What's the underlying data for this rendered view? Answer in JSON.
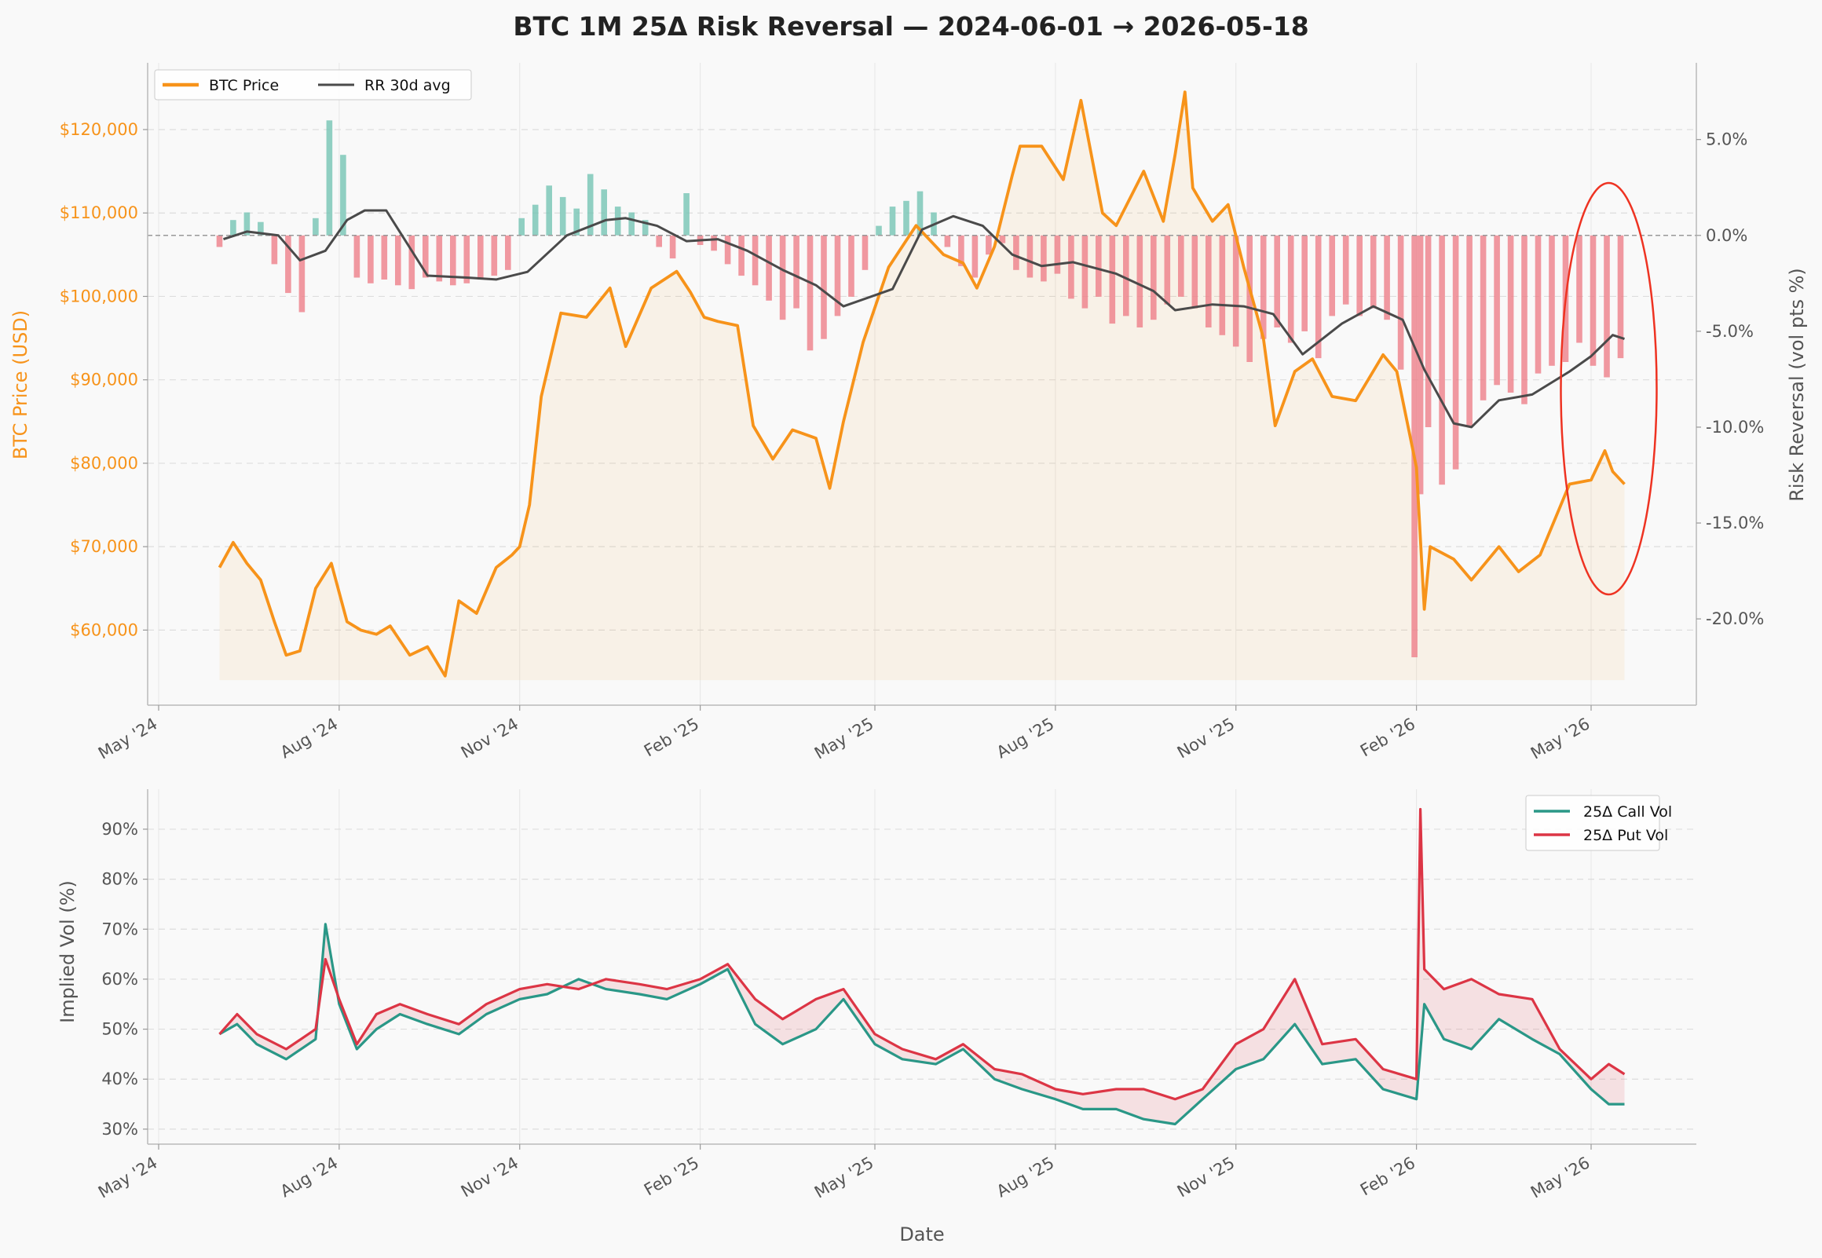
{
  "colors": {
    "price": "#f7931a",
    "rr_avg": "#4a4a4a",
    "rr_pos": "#76c4b4",
    "rr_neg": "#ee808a",
    "call": "#2a9787",
    "put": "#dc3545",
    "callout": "#ee3322",
    "grid": "#dddddd",
    "background": "#f9f9f9"
  },
  "chart_data": [
    {
      "type": "line",
      "title": "BTC 1M 25Δ Risk Reversal  —  2024-06-01 → 2026-05-18",
      "ylabel": "BTC Price (USD)",
      "y2label": "Risk Reversal (vol pts %)",
      "x_ticks": [
        "May '24",
        "Aug '24",
        "Nov '24",
        "Feb '25",
        "May '25",
        "Aug '25",
        "Nov '25",
        "Feb '26",
        "May '26"
      ],
      "ylim": [
        51000,
        128000
      ],
      "y_ticks": [
        "$60,000",
        "$70,000",
        "$80,000",
        "$90,000",
        "$100,000",
        "$110,000",
        "$120,000"
      ],
      "y2lim": [
        -24.5,
        9.0
      ],
      "y2_ticks": [
        "5.0%",
        "0.0%",
        "-5.0%",
        "-10.0%",
        "-15.0%",
        "-20.0%"
      ],
      "grid": true,
      "legend": {
        "placement": "top-left",
        "entries": [
          "BTC Price",
          "RR 30d avg"
        ]
      },
      "annotation": "red ellipse highlighting recent period (Apr–May 2026)",
      "price_series": {
        "name": "BTC Price",
        "x": [
          "2024-06-01",
          "2024-06-08",
          "2024-06-15",
          "2024-06-22",
          "2024-06-29",
          "2024-07-05",
          "2024-07-12",
          "2024-07-20",
          "2024-07-28",
          "2024-08-05",
          "2024-08-12",
          "2024-08-20",
          "2024-08-27",
          "2024-09-06",
          "2024-09-15",
          "2024-09-24",
          "2024-10-01",
          "2024-10-10",
          "2024-10-20",
          "2024-10-28",
          "2024-11-01",
          "2024-11-06",
          "2024-11-12",
          "2024-11-22",
          "2024-12-05",
          "2024-12-17",
          "2024-12-25",
          "2025-01-07",
          "2025-01-20",
          "2025-01-27",
          "2025-02-03",
          "2025-02-10",
          "2025-02-20",
          "2025-02-28",
          "2025-03-10",
          "2025-03-20",
          "2025-04-01",
          "2025-04-08",
          "2025-04-15",
          "2025-04-25",
          "2025-05-08",
          "2025-05-22",
          "2025-06-05",
          "2025-06-15",
          "2025-06-22",
          "2025-07-01",
          "2025-07-10",
          "2025-07-14",
          "2025-07-25",
          "2025-08-05",
          "2025-08-14",
          "2025-08-25",
          "2025-09-01",
          "2025-09-15",
          "2025-09-25",
          "2025-10-01",
          "2025-10-06",
          "2025-10-10",
          "2025-10-20",
          "2025-10-28",
          "2025-11-05",
          "2025-11-15",
          "2025-11-21",
          "2025-12-01",
          "2025-12-10",
          "2025-12-20",
          "2026-01-01",
          "2026-01-15",
          "2026-01-22",
          "2026-02-01",
          "2026-02-05",
          "2026-02-08",
          "2026-02-20",
          "2026-03-01",
          "2026-03-15",
          "2026-03-25",
          "2026-04-05",
          "2026-04-20",
          "2026-05-01",
          "2026-05-08",
          "2026-05-12",
          "2026-05-18"
        ],
        "values": [
          67500,
          70500,
          68000,
          66000,
          61000,
          57000,
          57500,
          65000,
          68000,
          61000,
          60000,
          59500,
          60500,
          57000,
          58000,
          54500,
          63500,
          62000,
          67500,
          69000,
          70000,
          75000,
          88000,
          98000,
          97500,
          101000,
          94000,
          101000,
          103000,
          100500,
          97500,
          97000,
          96500,
          84500,
          80500,
          84000,
          83000,
          77000,
          85000,
          94500,
          103500,
          108500,
          105000,
          104000,
          101000,
          106000,
          114500,
          118000,
          118000,
          114000,
          123500,
          110000,
          108500,
          115000,
          109000,
          117000,
          124500,
          113000,
          109000,
          111000,
          103500,
          95000,
          84500,
          91000,
          92500,
          88000,
          87500,
          93000,
          91000,
          79500,
          62500,
          70000,
          68500,
          66000,
          70000,
          67000,
          69000,
          77500,
          78000,
          81500,
          79000,
          77500
        ]
      },
      "rr_30d_avg": {
        "name": "RR 30d avg",
        "x": [
          "2024-06-03",
          "2024-06-15",
          "2024-07-01",
          "2024-07-12",
          "2024-07-25",
          "2024-08-05",
          "2024-08-14",
          "2024-08-25",
          "2024-09-15",
          "2024-10-05",
          "2024-10-20",
          "2024-11-05",
          "2024-11-25",
          "2024-12-15",
          "2024-12-25",
          "2025-01-10",
          "2025-01-25",
          "2025-02-10",
          "2025-02-25",
          "2025-03-15",
          "2025-04-01",
          "2025-04-15",
          "2025-05-10",
          "2025-05-25",
          "2025-06-10",
          "2025-06-25",
          "2025-07-10",
          "2025-07-25",
          "2025-08-10",
          "2025-09-01",
          "2025-09-20",
          "2025-10-01",
          "2025-10-20",
          "2025-11-05",
          "2025-11-20",
          "2025-12-05",
          "2025-12-25",
          "2026-01-10",
          "2026-01-25",
          "2026-02-05",
          "2026-02-20",
          "2026-03-01",
          "2026-03-15",
          "2026-04-01",
          "2026-04-20",
          "2026-05-01",
          "2026-05-12",
          "2026-05-18"
        ],
        "values": [
          -0.2,
          0.2,
          0.0,
          -1.3,
          -0.8,
          0.8,
          1.3,
          1.3,
          -2.1,
          -2.2,
          -2.3,
          -1.9,
          0.0,
          0.8,
          0.9,
          0.5,
          -0.3,
          -0.2,
          -0.8,
          -1.8,
          -2.6,
          -3.7,
          -2.8,
          0.3,
          1.0,
          0.5,
          -1.0,
          -1.6,
          -1.4,
          -2.0,
          -2.9,
          -3.9,
          -3.6,
          -3.7,
          -4.1,
          -6.2,
          -4.6,
          -3.7,
          -4.4,
          -7.0,
          -9.8,
          -10.0,
          -8.6,
          -8.3,
          -7.1,
          -6.3,
          -5.2,
          -5.4
        ]
      },
      "rr_daily_bars": {
        "name": "Risk Reversal (daily)",
        "x": [
          "2024-06-01",
          "2024-06-08",
          "2024-06-15",
          "2024-06-22",
          "2024-06-29",
          "2024-07-06",
          "2024-07-13",
          "2024-07-20",
          "2024-07-27",
          "2024-08-03",
          "2024-08-10",
          "2024-08-17",
          "2024-08-24",
          "2024-08-31",
          "2024-09-07",
          "2024-09-14",
          "2024-09-21",
          "2024-09-28",
          "2024-10-05",
          "2024-10-12",
          "2024-10-19",
          "2024-10-26",
          "2024-11-02",
          "2024-11-09",
          "2024-11-16",
          "2024-11-23",
          "2024-11-30",
          "2024-12-07",
          "2024-12-14",
          "2024-12-21",
          "2024-12-28",
          "2025-01-04",
          "2025-01-11",
          "2025-01-18",
          "2025-01-25",
          "2025-02-01",
          "2025-02-08",
          "2025-02-15",
          "2025-02-22",
          "2025-03-01",
          "2025-03-08",
          "2025-03-15",
          "2025-03-22",
          "2025-03-29",
          "2025-04-05",
          "2025-04-12",
          "2025-04-19",
          "2025-04-26",
          "2025-05-03",
          "2025-05-10",
          "2025-05-17",
          "2025-05-24",
          "2025-05-31",
          "2025-06-07",
          "2025-06-14",
          "2025-06-21",
          "2025-06-28",
          "2025-07-05",
          "2025-07-12",
          "2025-07-19",
          "2025-07-26",
          "2025-08-02",
          "2025-08-09",
          "2025-08-16",
          "2025-08-23",
          "2025-08-30",
          "2025-09-06",
          "2025-09-13",
          "2025-09-20",
          "2025-09-27",
          "2025-10-04",
          "2025-10-11",
          "2025-10-18",
          "2025-10-25",
          "2025-11-01",
          "2025-11-08",
          "2025-11-15",
          "2025-11-22",
          "2025-11-29",
          "2025-12-06",
          "2025-12-13",
          "2025-12-20",
          "2025-12-27",
          "2026-01-03",
          "2026-01-10",
          "2026-01-17",
          "2026-01-24",
          "2026-01-31",
          "2026-02-03",
          "2026-02-07",
          "2026-02-14",
          "2026-02-21",
          "2026-02-28",
          "2026-03-07",
          "2026-03-14",
          "2026-03-21",
          "2026-03-28",
          "2026-04-04",
          "2026-04-11",
          "2026-04-18",
          "2026-04-25",
          "2026-05-02",
          "2026-05-09",
          "2026-05-16"
        ],
        "values": [
          -0.6,
          0.8,
          1.2,
          0.7,
          -1.5,
          -3.0,
          -4.0,
          0.9,
          6.0,
          4.2,
          -2.2,
          -2.5,
          -2.3,
          -2.6,
          -2.8,
          -2.2,
          -2.4,
          -2.6,
          -2.5,
          -2.3,
          -2.1,
          -1.8,
          0.9,
          1.6,
          2.6,
          2.0,
          1.4,
          3.2,
          2.4,
          1.5,
          1.2,
          0.8,
          -0.6,
          -1.2,
          2.2,
          -0.5,
          -0.8,
          -1.5,
          -2.1,
          -2.6,
          -3.4,
          -4.4,
          -3.8,
          -6.0,
          -5.4,
          -4.2,
          -3.2,
          -1.8,
          0.5,
          1.5,
          1.8,
          2.3,
          1.2,
          -0.6,
          -1.6,
          -2.2,
          -1.0,
          -0.4,
          -1.8,
          -2.2,
          -2.4,
          -2.0,
          -3.3,
          -3.8,
          -3.2,
          -4.6,
          -4.2,
          -4.8,
          -4.4,
          -3.6,
          -3.2,
          -3.8,
          -4.8,
          -5.2,
          -5.8,
          -6.6,
          -5.4,
          -4.8,
          -5.6,
          -5.0,
          -6.4,
          -4.2,
          -3.6,
          -4.2,
          -3.8,
          -4.4,
          -7.0,
          -22.0,
          -13.5,
          -10.0,
          -13.0,
          -12.2,
          -10.0,
          -8.6,
          -7.8,
          -8.2,
          -8.8,
          -7.2,
          -6.8,
          -6.6,
          -5.6,
          -6.8,
          -7.4,
          -6.4
        ]
      }
    },
    {
      "type": "line",
      "xlabel": "Date",
      "ylabel": "Implied Vol (%)",
      "x_ticks": [
        "May '24",
        "Aug '24",
        "Nov '24",
        "Feb '25",
        "May '25",
        "Aug '25",
        "Nov '25",
        "Feb '26",
        "May '26"
      ],
      "ylim": [
        27,
        98
      ],
      "y_ticks": [
        "30%",
        "40%",
        "50%",
        "60%",
        "70%",
        "80%",
        "90%"
      ],
      "grid": true,
      "legend": {
        "placement": "top-right",
        "entries": [
          "25Δ Call Vol",
          "25Δ Put Vol"
        ]
      },
      "series": [
        {
          "name": "25Δ Call Vol",
          "x": [
            "2024-06-01",
            "2024-06-10",
            "2024-06-20",
            "2024-07-05",
            "2024-07-20",
            "2024-07-25",
            "2024-08-01",
            "2024-08-10",
            "2024-08-20",
            "2024-09-01",
            "2024-09-15",
            "2024-10-01",
            "2024-10-15",
            "2024-11-01",
            "2024-11-15",
            "2024-12-01",
            "2024-12-15",
            "2025-01-01",
            "2025-01-15",
            "2025-02-01",
            "2025-02-15",
            "2025-03-01",
            "2025-03-15",
            "2025-04-01",
            "2025-04-15",
            "2025-05-01",
            "2025-05-15",
            "2025-06-01",
            "2025-06-15",
            "2025-07-01",
            "2025-07-15",
            "2025-08-01",
            "2025-08-15",
            "2025-09-01",
            "2025-09-15",
            "2025-10-01",
            "2025-10-15",
            "2025-11-01",
            "2025-11-15",
            "2025-12-01",
            "2025-12-15",
            "2026-01-01",
            "2026-01-15",
            "2026-02-01",
            "2026-02-05",
            "2026-02-15",
            "2026-03-01",
            "2026-03-15",
            "2026-04-01",
            "2026-04-15",
            "2026-05-01",
            "2026-05-10",
            "2026-05-18"
          ],
          "values": [
            49,
            51,
            47,
            44,
            48,
            71,
            55,
            46,
            50,
            53,
            51,
            49,
            53,
            56,
            57,
            60,
            58,
            57,
            56,
            59,
            62,
            51,
            47,
            50,
            56,
            47,
            44,
            43,
            46,
            40,
            38,
            36,
            34,
            34,
            32,
            31,
            36,
            42,
            44,
            51,
            43,
            44,
            38,
            36,
            55,
            48,
            46,
            52,
            48,
            45,
            38,
            35,
            35
          ]
        },
        {
          "name": "25Δ Put Vol",
          "x": [
            "2024-06-01",
            "2024-06-10",
            "2024-06-20",
            "2024-07-05",
            "2024-07-20",
            "2024-07-25",
            "2024-08-01",
            "2024-08-10",
            "2024-08-20",
            "2024-09-01",
            "2024-09-15",
            "2024-10-01",
            "2024-10-15",
            "2024-11-01",
            "2024-11-15",
            "2024-12-01",
            "2024-12-15",
            "2025-01-01",
            "2025-01-15",
            "2025-02-01",
            "2025-02-15",
            "2025-03-01",
            "2025-03-15",
            "2025-04-01",
            "2025-04-15",
            "2025-05-01",
            "2025-05-15",
            "2025-06-01",
            "2025-06-15",
            "2025-07-01",
            "2025-07-15",
            "2025-08-01",
            "2025-08-15",
            "2025-09-01",
            "2025-09-15",
            "2025-10-01",
            "2025-10-15",
            "2025-11-01",
            "2025-11-15",
            "2025-12-01",
            "2025-12-15",
            "2026-01-01",
            "2026-01-15",
            "2026-02-01",
            "2026-02-03",
            "2026-02-05",
            "2026-02-15",
            "2026-03-01",
            "2026-03-15",
            "2026-04-01",
            "2026-04-15",
            "2026-05-01",
            "2026-05-10",
            "2026-05-18"
          ],
          "values": [
            49,
            53,
            49,
            46,
            50,
            64,
            56,
            47,
            53,
            55,
            53,
            51,
            55,
            58,
            59,
            58,
            60,
            59,
            58,
            60,
            63,
            56,
            52,
            56,
            58,
            49,
            46,
            44,
            47,
            42,
            41,
            38,
            37,
            38,
            38,
            36,
            38,
            47,
            50,
            60,
            47,
            48,
            42,
            40,
            94,
            62,
            58,
            60,
            57,
            56,
            46,
            40,
            43,
            41
          ]
        }
      ]
    }
  ]
}
